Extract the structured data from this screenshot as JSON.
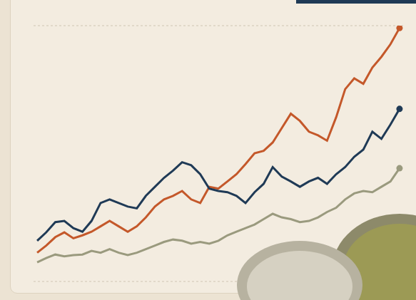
{
  "chart_data": {
    "type": "line",
    "x": [
      0,
      1,
      2,
      3,
      4,
      5,
      6,
      7,
      8,
      9,
      10,
      11,
      12,
      13,
      14,
      15,
      16,
      17,
      18,
      19,
      20,
      21,
      22,
      23,
      24,
      25,
      26,
      27,
      28,
      29,
      30,
      31,
      32,
      33,
      34,
      35,
      36,
      37,
      38,
      39,
      40
    ],
    "xlim": [
      -0.4,
      40.4
    ],
    "ylim": [
      13,
      440
    ],
    "yticks": [
      100,
      200,
      300,
      400
    ],
    "grid": true,
    "tick_labels": false,
    "series": [
      {
        "color": "#c4582a",
        "values": [
          61,
          73,
          87,
          95,
          85,
          90,
          96,
          105,
          114,
          105,
          96,
          105,
          120,
          138,
          150,
          156,
          164,
          150,
          144,
          171,
          168,
          180,
          192,
          209,
          227,
          231,
          245,
          269,
          293,
          281,
          263,
          257,
          248,
          287,
          334,
          352,
          343,
          370,
          388,
          409,
          436
        ]
      },
      {
        "color": "#1f3a56",
        "values": [
          81,
          95,
          112,
          114,
          102,
          96,
          114,
          144,
          150,
          144,
          138,
          135,
          156,
          171,
          186,
          198,
          212,
          207,
          192,
          168,
          164,
          162,
          156,
          144,
          162,
          176,
          204,
          188,
          180,
          171,
          180,
          186,
          176,
          192,
          204,
          221,
          233,
          263,
          251,
          275,
          301
        ]
      },
      {
        "color": "#9a9a7e",
        "values": [
          45,
          52,
          58,
          55,
          57,
          58,
          64,
          61,
          67,
          61,
          57,
          61,
          67,
          73,
          79,
          83,
          81,
          76,
          79,
          76,
          81,
          90,
          96,
          102,
          108,
          117,
          126,
          120,
          117,
          112,
          114,
          120,
          129,
          136,
          150,
          160,
          164,
          162,
          171,
          180,
          202
        ]
      }
    ]
  }
}
